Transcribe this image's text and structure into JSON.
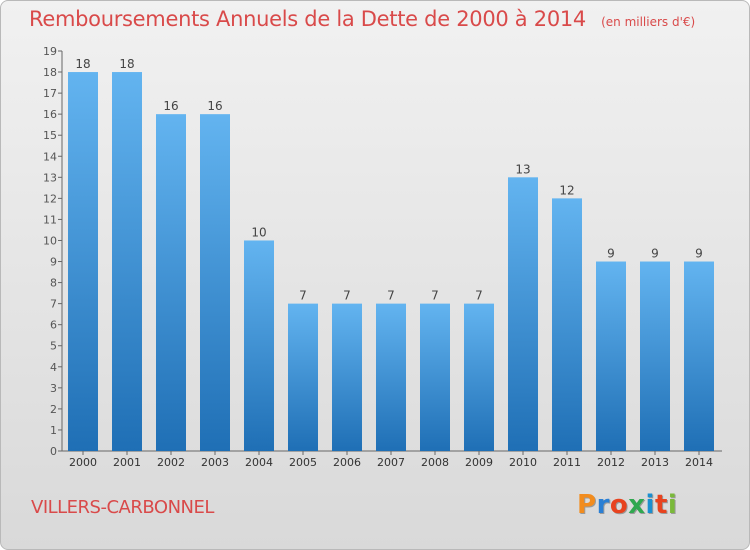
{
  "header": {
    "title": "Remboursements Annuels de la Dette de 2000 à 2014",
    "unit": "(en milliers d'€)"
  },
  "footer": {
    "city": "VILLERS-CARBONNEL",
    "logo_text": "Proxiti",
    "logo_colors": [
      "#f28c1e",
      "#2a7fd4",
      "#e8431f",
      "#2fa84f",
      "#1b8fd0",
      "#e8431f",
      "#7ab93a"
    ]
  },
  "colors": {
    "bar_top": "#63b4f0",
    "bar_bottom": "#1f6fb5",
    "text": "#d94a4a"
  },
  "chart_data": {
    "type": "bar",
    "categories": [
      "2000",
      "2001",
      "2002",
      "2003",
      "2004",
      "2005",
      "2006",
      "2007",
      "2008",
      "2009",
      "2010",
      "2011",
      "2012",
      "2013",
      "2014"
    ],
    "values": [
      18,
      18,
      16,
      16,
      10,
      7,
      7,
      7,
      7,
      7,
      13,
      12,
      9,
      9,
      9
    ],
    "data_labels": [
      "18",
      "18",
      "16",
      "16",
      "10",
      "7",
      "7",
      "7",
      "7",
      "7",
      "13",
      "12",
      "9",
      "9",
      "9"
    ],
    "y_ticks": [
      "0",
      "1",
      "2",
      "3",
      "4",
      "5",
      "6",
      "7",
      "8",
      "9",
      "10",
      "11",
      "12",
      "13",
      "14",
      "15",
      "16",
      "17",
      "18",
      "19"
    ],
    "ylim": [
      0,
      19
    ],
    "title": "Remboursements Annuels de la Dette de 2000 à 2014",
    "xlabel": "",
    "ylabel": "",
    "grid": false
  }
}
